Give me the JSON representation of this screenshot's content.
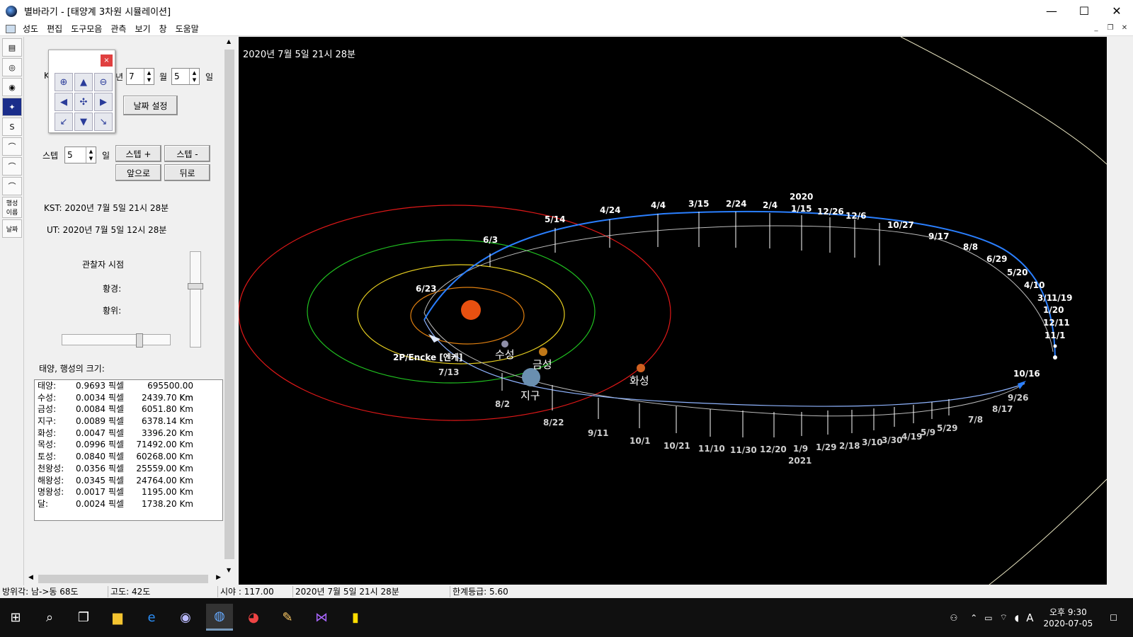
{
  "window": {
    "title": "별바라기 - [태양계 3차원 시뮬레이션]",
    "min": "—",
    "max": "☐",
    "close": "✕"
  },
  "menu": [
    "성도",
    "편집",
    "도구모음",
    "관측",
    "보기",
    "창",
    "도움말"
  ],
  "mdi": {
    "min": "_",
    "restore": "❐",
    "close": "✕"
  },
  "tools": [
    "▤",
    "◎",
    "◉",
    "✦",
    "S",
    "⌒",
    "⌒",
    "⌒",
    "행성\n이름",
    "날짜"
  ],
  "left": {
    "date_k": "K",
    "year_suffix": "년",
    "month_value": "7",
    "month_label": "월",
    "day_value": "5",
    "day_label": "일",
    "set_date": "날짜 설정",
    "step_label": "스텝",
    "step_value": "5",
    "step_unit": "일",
    "step_plus": "스텝 +",
    "step_minus": "스텝 -",
    "forward": "앞으로",
    "backward": "뒤로",
    "kst": "KST: 2020년   7월   5일 21시 28분",
    "ut": "UT:  2020년   7월   5일 12시 28분",
    "viewpoint": "관찰자 시점",
    "ecl_lon": "황경:",
    "ecl_lat": "황위:",
    "size_title": "태양, 행성의 크기:",
    "pixel_unit": "픽셀",
    "size_rows": [
      {
        "name": "태양:",
        "px": "0.9693",
        "km": "695500.00 Km"
      },
      {
        "name": "수성:",
        "px": "0.0034",
        "km": "2439.70 Km"
      },
      {
        "name": "금성:",
        "px": "0.0084",
        "km": "6051.80 Km"
      },
      {
        "name": "지구:",
        "px": "0.0089",
        "km": "6378.14 Km"
      },
      {
        "name": "화성:",
        "px": "0.0047",
        "km": "3396.20 Km"
      },
      {
        "name": "목성:",
        "px": "0.0996",
        "km": "71492.00 Km"
      },
      {
        "name": "토성:",
        "px": "0.0840",
        "km": "60268.00 Km"
      },
      {
        "name": "천왕성:",
        "px": "0.0356",
        "km": "25559.00 Km"
      },
      {
        "name": "해왕성:",
        "px": "0.0345",
        "km": "24764.00 Km"
      },
      {
        "name": "명왕성:",
        "px": "0.0017",
        "km": "1195.00 Km"
      },
      {
        "name": "달:",
        "px": "0.0024",
        "km": "1738.20 Km"
      }
    ]
  },
  "sky": {
    "datestamp": "2020년  7월  5일 21시 28분",
    "planets": {
      "mercury": "수성",
      "venus": "금성",
      "earth": "지구",
      "mars": "화성",
      "comet": "2P/Encke [엔케]"
    },
    "upper_dates": [
      "6/23",
      "6/3",
      "5/14",
      "4/24",
      "4/4",
      "3/15",
      "2/24",
      "2/4",
      "1/15",
      "12/26",
      "12/6",
      "10/27",
      "9/17",
      "8/8",
      "6/29",
      "5/20",
      "4/10",
      "3/1",
      "1/19",
      "1/20",
      "12/11",
      "11/1"
    ],
    "upper_year": "2020",
    "lower_dates": [
      "7/13",
      "8/2",
      "8/22",
      "9/11",
      "10/1",
      "10/21",
      "11/10",
      "11/30",
      "12/20",
      "1/9",
      "1/29",
      "2/18",
      "3/10",
      "3/30",
      "4/19",
      "5/9",
      "5/29",
      "7/8",
      "8/17",
      "9/26",
      "10/16"
    ],
    "lower_year": "2021",
    "colors": {
      "mercury_orbit": "#e08010",
      "venus_orbit": "#e8d020",
      "earth_orbit": "#20c020",
      "mars_orbit": "#e01818",
      "comet_path": "#2a7fff",
      "sun": "#e85010"
    }
  },
  "status": {
    "azimuth": "방위각: 남->동  68도",
    "altitude": "고도:   42도",
    "fov": "시야 : 117.00",
    "date": "2020년  7월  5일 21시 28분",
    "limit": "한계등급:  5.60"
  },
  "taskbar": {
    "time": "오후 9:30",
    "date": "2020-07-05",
    "ime": "A"
  }
}
